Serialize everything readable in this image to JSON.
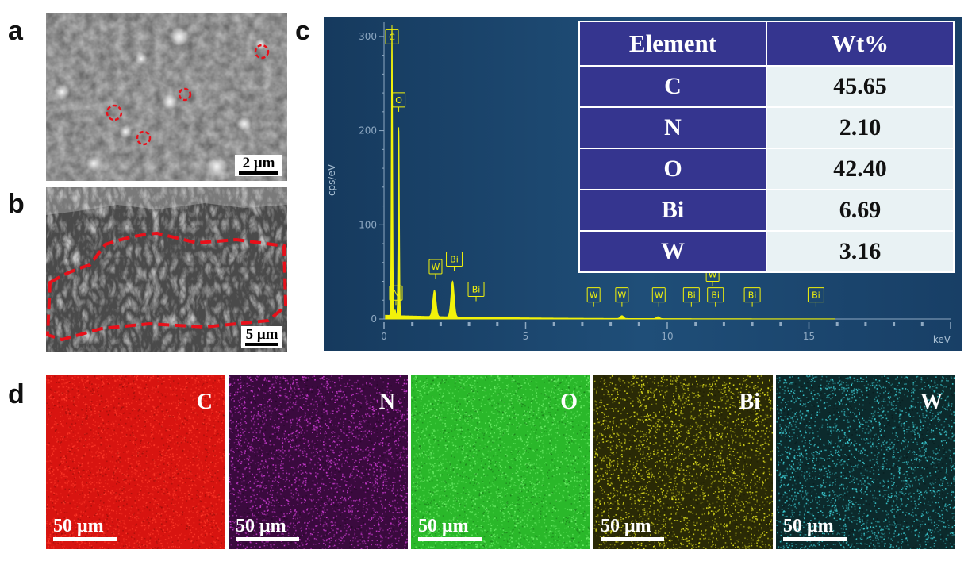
{
  "panels": {
    "a": "a",
    "b": "b",
    "c": "c",
    "d": "d"
  },
  "sem_a": {
    "scale_text": "2 μm"
  },
  "sem_b": {
    "scale_text": "5 μm"
  },
  "table": {
    "header_element": "Element",
    "header_wt": "Wt%",
    "rows": [
      {
        "element": "C",
        "wt": "45.65"
      },
      {
        "element": "N",
        "wt": "2.10"
      },
      {
        "element": "O",
        "wt": "42.40"
      },
      {
        "element": "Bi",
        "wt": "6.69"
      },
      {
        "element": "W",
        "wt": "3.16"
      }
    ]
  },
  "chart_data": {
    "type": "line",
    "ylabel": "cps/eV",
    "xlabel": "keV",
    "xlim": [
      0,
      20
    ],
    "ylim": [
      0,
      310
    ],
    "x_ticks": [
      0,
      5,
      10,
      15
    ],
    "y_ticks": [
      0,
      100,
      200,
      300
    ],
    "colors": {
      "background": "#1d4a73",
      "spectrum": "#f2f20a",
      "label": "#f2f20a"
    },
    "peaks": [
      {
        "x": 0.28,
        "y": 308
      },
      {
        "x": 0.39,
        "y": 6
      },
      {
        "x": 0.52,
        "y": 200
      },
      {
        "x": 1.78,
        "y": 28
      },
      {
        "x": 2.42,
        "y": 38
      },
      {
        "x": 8.4,
        "y": 3
      },
      {
        "x": 9.67,
        "y": 2
      }
    ],
    "baseline": 4,
    "peak_labels": [
      {
        "text": "C",
        "x": 0.28,
        "y": 292
      },
      {
        "text": "O",
        "x": 0.52,
        "y": 225
      },
      {
        "text": "N",
        "x": 0.42,
        "y": 20
      },
      {
        "text": "W",
        "x": 1.82,
        "y": 48
      },
      {
        "text": "Bi",
        "x": 2.48,
        "y": 56
      },
      {
        "text": "Bi",
        "x": 3.25,
        "y": 24
      },
      {
        "text": "W",
        "x": 7.4,
        "y": 18
      },
      {
        "text": "W",
        "x": 8.4,
        "y": 18
      },
      {
        "text": "W",
        "x": 9.7,
        "y": 18
      },
      {
        "text": "Bi",
        "x": 10.85,
        "y": 18
      },
      {
        "text": "W",
        "x": 11.6,
        "y": 40
      },
      {
        "text": "Bi",
        "x": 11.7,
        "y": 18
      },
      {
        "text": "Bi",
        "x": 13.0,
        "y": 18
      },
      {
        "text": "Bi",
        "x": 15.25,
        "y": 18
      }
    ]
  },
  "maps": [
    {
      "element": "C",
      "scale": "50 μm",
      "base": "#d81410",
      "dot": "#ff3a2a",
      "dark": "#8a0c08"
    },
    {
      "element": "N",
      "scale": "50 μm",
      "base": "#3a0a3e",
      "dot": "#d23ed8",
      "dark": "#1e0520"
    },
    {
      "element": "O",
      "scale": "50 μm",
      "base": "#2ab82a",
      "dot": "#6ef06a",
      "dark": "#137013"
    },
    {
      "element": "Bi",
      "scale": "50 μm",
      "base": "#2a2a06",
      "dot": "#f0f020",
      "dark": "#1a1a04"
    },
    {
      "element": "W",
      "scale": "50 μm",
      "base": "#0c2a2c",
      "dot": "#40d8e0",
      "dark": "#061618"
    }
  ]
}
